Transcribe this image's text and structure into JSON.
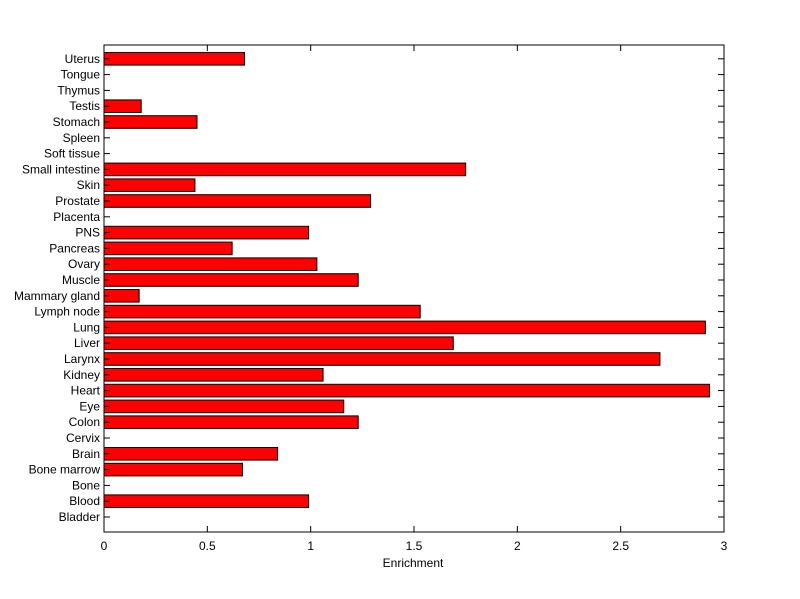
{
  "chart_data": {
    "type": "bar",
    "orientation": "horizontal",
    "title": "",
    "xlabel": "Enrichment",
    "ylabel": "",
    "xlim": [
      0,
      3
    ],
    "xticks": [
      "0",
      "0.5",
      "1",
      "1.5",
      "2",
      "2.5",
      "3"
    ],
    "grid": false,
    "legend": "none",
    "bar_color": "#ff0000",
    "edge_color": "#000000",
    "categories": [
      "Bladder",
      "Blood",
      "Bone",
      "Bone marrow",
      "Brain",
      "Cervix",
      "Colon",
      "Eye",
      "Heart",
      "Kidney",
      "Larynx",
      "Liver",
      "Lung",
      "Lymph node",
      "Mammary gland",
      "Muscle",
      "Ovary",
      "Pancreas",
      "PNS",
      "Placenta",
      "Prostate",
      "Skin",
      "Small intestine",
      "Soft tissue",
      "Spleen",
      "Stomach",
      "Testis",
      "Thymus",
      "Tongue",
      "Uterus"
    ],
    "values": [
      0,
      0.99,
      0,
      0.67,
      0.84,
      0,
      1.23,
      1.16,
      2.93,
      1.06,
      2.69,
      1.69,
      2.91,
      1.53,
      0.17,
      1.23,
      1.03,
      0.62,
      0.99,
      0,
      1.29,
      0.44,
      1.75,
      0,
      0,
      0.45,
      0.18,
      0,
      0,
      0.68
    ]
  }
}
